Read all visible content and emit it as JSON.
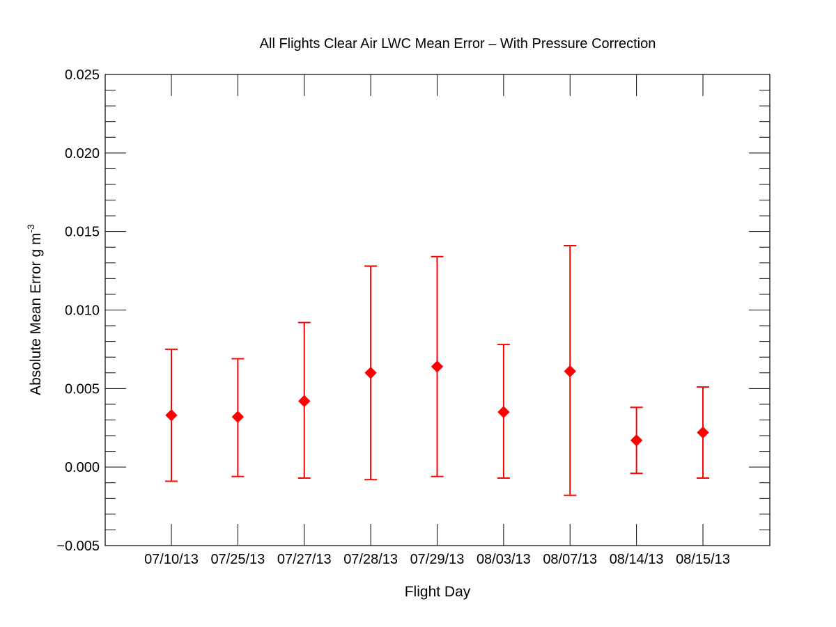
{
  "chart_data": {
    "type": "scatter",
    "title": "All Flights Clear Air LWC Mean Error – With Pressure Correction",
    "xlabel": "Flight Day",
    "ylabel": "Absolute Mean Error g m",
    "ylabel_superscript": "-3",
    "categories": [
      "07/10/13",
      "07/25/13",
      "07/27/13",
      "07/28/13",
      "07/29/13",
      "08/03/13",
      "08/07/13",
      "08/14/13",
      "08/15/13"
    ],
    "series": [
      {
        "values": [
          0.0033,
          0.0032,
          0.0042,
          0.006,
          0.0064,
          0.0035,
          0.0061,
          0.0017,
          0.0022
        ],
        "err_low": [
          -0.0009,
          -0.0006,
          -0.0007,
          -0.0008,
          -0.0006,
          -0.0007,
          -0.0018,
          -0.0004,
          -0.0007
        ],
        "err_high": [
          0.0075,
          0.0069,
          0.0092,
          0.0128,
          0.0134,
          0.0078,
          0.0141,
          0.0038,
          0.0051
        ],
        "color": "#ff0000",
        "marker": "diamond"
      }
    ],
    "ylim": [
      -0.005,
      0.025
    ],
    "yticks": [
      -0.005,
      0.0,
      0.005,
      0.01,
      0.015,
      0.02,
      0.025
    ],
    "ytick_labels": [
      "−0.005",
      "0.000",
      "0.005",
      "0.010",
      "0.015",
      "0.020",
      "0.025"
    ],
    "yminor_per_major": 5,
    "grid": false,
    "legend": "none"
  }
}
